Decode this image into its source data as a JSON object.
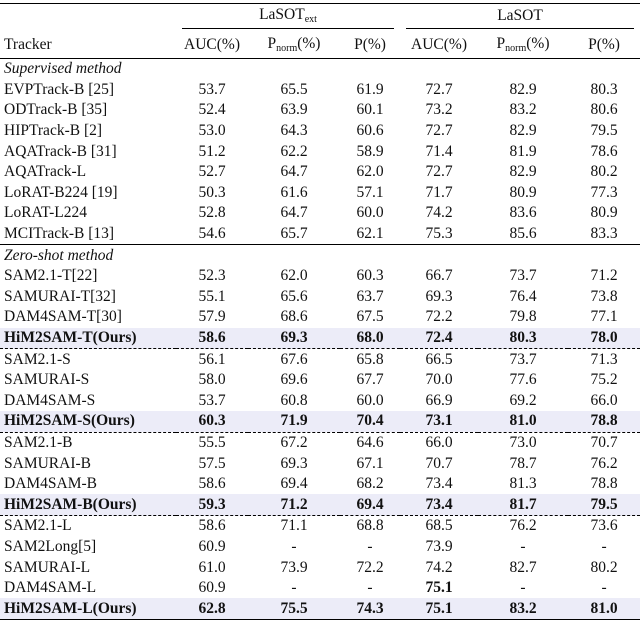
{
  "table": {
    "groups": [
      {
        "text": "LaSOT",
        "sub": "ext"
      },
      {
        "text": "LaSOT"
      }
    ],
    "columns": [
      {
        "text": "Tracker"
      },
      {
        "text": "AUC(%)"
      },
      {
        "text": "P",
        "sub": "norm",
        "suffix": "(%)"
      },
      {
        "text": "P(%)"
      },
      {
        "text": "AUC(%)"
      },
      {
        "text": "P",
        "sub": "norm",
        "suffix": "(%)"
      },
      {
        "text": "P(%)"
      }
    ],
    "highlight_color": "#ececf8",
    "sections": [
      {
        "title": "Supervised method",
        "groups": [
          [
            {
              "cells": [
                "EVPTrack-B [25]",
                "53.7",
                "65.5",
                "61.9",
                "72.7",
                "82.9",
                "80.3"
              ]
            },
            {
              "cells": [
                "ODTrack-B [35]",
                "52.4",
                "63.9",
                "60.1",
                "73.2",
                "83.2",
                "80.6"
              ]
            },
            {
              "cells": [
                "HIPTrack-B [2]",
                "53.0",
                "64.3",
                "60.6",
                "72.7",
                "82.9",
                "79.5"
              ]
            },
            {
              "cells": [
                "AQATrack-B [31]",
                "51.2",
                "62.2",
                "58.9",
                "71.4",
                "81.9",
                "78.6"
              ]
            },
            {
              "cells": [
                "AQATrack-L",
                "52.7",
                "64.7",
                "62.0",
                "72.7",
                "82.9",
                "80.2"
              ]
            },
            {
              "cells": [
                "LoRAT-B224 [19]",
                "50.3",
                "61.6",
                "57.1",
                "71.7",
                "80.9",
                "77.3"
              ]
            },
            {
              "cells": [
                "LoRAT-L224",
                "52.8",
                "64.7",
                "60.0",
                "74.2",
                "83.6",
                "80.9"
              ]
            },
            {
              "cells": [
                "MCITrack-B [13]",
                "54.6",
                "65.7",
                "62.1",
                "75.3",
                "85.6",
                "83.3"
              ]
            }
          ]
        ]
      },
      {
        "title": "Zero-shot method",
        "groups": [
          [
            {
              "cells": [
                "SAM2.1-T[22]",
                "52.3",
                "62.0",
                "60.3",
                "66.7",
                "73.7",
                "71.2"
              ]
            },
            {
              "cells": [
                "SAMURAI-T[32]",
                "55.1",
                "65.6",
                "63.7",
                "69.3",
                "76.4",
                "73.8"
              ]
            },
            {
              "cells": [
                "DAM4SAM-T[30]",
                "57.9",
                "68.6",
                "67.5",
                "72.2",
                "79.8",
                "77.1"
              ]
            },
            {
              "cells": [
                "HiM2SAM-T(Ours)",
                "58.6",
                "69.3",
                "68.0",
                "72.4",
                "80.3",
                "78.0"
              ],
              "highlight": true
            }
          ],
          [
            {
              "cells": [
                "SAM2.1-S",
                "56.1",
                "67.6",
                "65.8",
                "66.5",
                "73.7",
                "71.3"
              ]
            },
            {
              "cells": [
                "SAMURAI-S",
                "58.0",
                "69.6",
                "67.7",
                "70.0",
                "77.6",
                "75.2"
              ]
            },
            {
              "cells": [
                "DAM4SAM-S",
                "53.7",
                "60.8",
                "60.0",
                "66.9",
                "69.2",
                "66.0"
              ]
            },
            {
              "cells": [
                "HiM2SAM-S(Ours)",
                "60.3",
                "71.9",
                "70.4",
                "73.1",
                "81.0",
                "78.8"
              ],
              "highlight": true
            }
          ],
          [
            {
              "cells": [
                "SAM2.1-B",
                "55.5",
                "67.2",
                "64.6",
                "66.0",
                "73.0",
                "70.7"
              ]
            },
            {
              "cells": [
                "SAMURAI-B",
                "57.5",
                "69.3",
                "67.1",
                "70.7",
                "78.7",
                "76.2"
              ]
            },
            {
              "cells": [
                "DAM4SAM-B",
                "58.6",
                "69.4",
                "68.2",
                "73.4",
                "81.3",
                "78.8"
              ]
            },
            {
              "cells": [
                "HiM2SAM-B(Ours)",
                "59.3",
                "71.2",
                "69.4",
                "73.4",
                "81.7",
                "79.5"
              ],
              "highlight": true
            }
          ],
          [
            {
              "cells": [
                "SAM2.1-L",
                "58.6",
                "71.1",
                "68.8",
                "68.5",
                "76.2",
                "73.6"
              ]
            },
            {
              "cells": [
                "SAM2Long[5]",
                "60.9",
                "-",
                "-",
                "73.9",
                "-",
                "-"
              ]
            },
            {
              "cells": [
                "SAMURAI-L",
                "61.0",
                "73.9",
                "72.2",
                "74.2",
                "82.7",
                "80.2"
              ]
            },
            {
              "cells": [
                "DAM4SAM-L",
                "60.9",
                "-",
                "-",
                "75.1",
                "-",
                "-"
              ],
              "bold_cells": [
                4
              ]
            },
            {
              "cells": [
                "HiM2SAM-L(Ours)",
                "62.8",
                "75.5",
                "74.3",
                "75.1",
                "83.2",
                "81.0"
              ],
              "highlight": true
            }
          ]
        ]
      }
    ]
  }
}
